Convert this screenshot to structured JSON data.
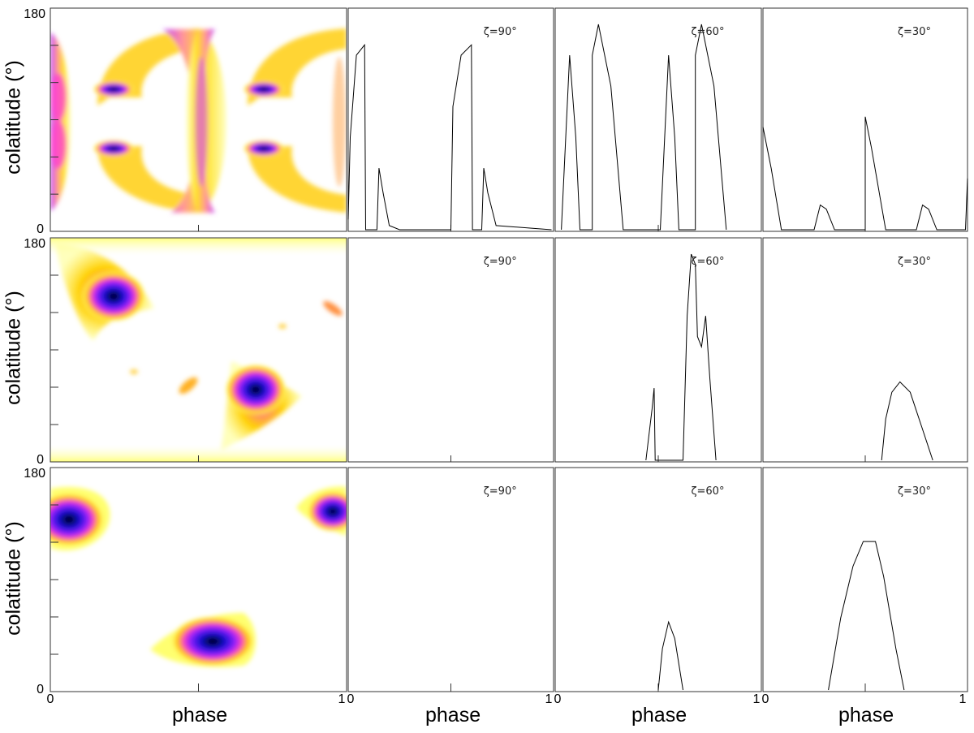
{
  "figure": {
    "y_axis_label": "colatitude (°)",
    "x_axis_label": "phase",
    "map_ticks": {
      "x": [
        "0",
        "1"
      ],
      "y_bottom": "0",
      "y_top": "180"
    },
    "profile_ticks": [
      "0",
      "1"
    ],
    "zeta_labels": [
      "ζ=90°",
      "ζ=60°",
      "ζ=30°"
    ],
    "colormap": [
      "#ffffff",
      "#ffff66",
      "#ffd000",
      "#ff8040",
      "#ff00ff",
      "#8000ff",
      "#2020ff",
      "#000000"
    ]
  },
  "chart_data": [
    {
      "type": "heatmap",
      "row": 1,
      "description_axes": "phase vs colatitude",
      "xlim": [
        0,
        1
      ],
      "ylim": [
        0,
        180
      ]
    },
    {
      "type": "line",
      "row": 1,
      "label": "ζ=90°",
      "xlim": [
        0,
        1
      ],
      "points": [
        [
          0.0,
          0.05
        ],
        [
          0.01,
          0.45
        ],
        [
          0.04,
          0.85
        ],
        [
          0.08,
          0.9
        ],
        [
          0.085,
          0.0
        ],
        [
          0.14,
          0.0
        ],
        [
          0.15,
          0.3
        ],
        [
          0.17,
          0.18
        ],
        [
          0.2,
          0.02
        ],
        [
          0.25,
          0.0
        ],
        [
          0.5,
          0.0
        ],
        [
          0.51,
          0.6
        ],
        [
          0.55,
          0.85
        ],
        [
          0.6,
          0.9
        ],
        [
          0.605,
          0.0
        ],
        [
          0.65,
          0.0
        ],
        [
          0.66,
          0.3
        ],
        [
          0.68,
          0.18
        ],
        [
          0.72,
          0.02
        ],
        [
          0.99,
          0.0
        ]
      ]
    },
    {
      "type": "line",
      "row": 1,
      "label": "ζ=60°",
      "xlim": [
        0,
        1
      ],
      "points": [
        [
          0.03,
          0.0
        ],
        [
          0.07,
          0.85
        ],
        [
          0.1,
          0.45
        ],
        [
          0.12,
          0.0
        ],
        [
          0.18,
          0.0
        ],
        [
          0.18,
          0.85
        ],
        [
          0.21,
          1.0
        ],
        [
          0.27,
          0.7
        ],
        [
          0.33,
          0.0
        ],
        [
          0.51,
          0.0
        ],
        [
          0.55,
          0.85
        ],
        [
          0.58,
          0.45
        ],
        [
          0.6,
          0.0
        ],
        [
          0.68,
          0.0
        ],
        [
          0.68,
          0.85
        ],
        [
          0.71,
          1.0
        ],
        [
          0.77,
          0.7
        ],
        [
          0.83,
          0.0
        ]
      ]
    },
    {
      "type": "line",
      "row": 1,
      "label": "ζ=30°",
      "xlim": [
        0,
        1
      ],
      "points": [
        [
          0.0,
          0.5
        ],
        [
          0.04,
          0.3
        ],
        [
          0.09,
          0.0
        ],
        [
          0.25,
          0.0
        ],
        [
          0.28,
          0.12
        ],
        [
          0.31,
          0.1
        ],
        [
          0.35,
          0.0
        ],
        [
          0.5,
          0.0
        ],
        [
          0.5,
          0.55
        ],
        [
          0.53,
          0.4
        ],
        [
          0.6,
          0.0
        ],
        [
          0.75,
          0.0
        ],
        [
          0.78,
          0.12
        ],
        [
          0.81,
          0.1
        ],
        [
          0.85,
          0.0
        ],
        [
          0.99,
          0.0
        ],
        [
          1.0,
          0.25
        ]
      ]
    },
    {
      "type": "heatmap",
      "row": 2,
      "description_axes": "phase vs colatitude",
      "xlim": [
        0,
        1
      ],
      "ylim": [
        0,
        180
      ]
    },
    {
      "type": "line",
      "row": 2,
      "label": "ζ=90°",
      "xlim": [
        0,
        1
      ],
      "points": []
    },
    {
      "type": "line",
      "row": 2,
      "label": "ζ=60°",
      "xlim": [
        0,
        1
      ],
      "points": [
        [
          0.44,
          0.0
        ],
        [
          0.47,
          0.25
        ],
        [
          0.48,
          0.35
        ],
        [
          0.485,
          0.0
        ],
        [
          0.62,
          0.0
        ],
        [
          0.64,
          0.7
        ],
        [
          0.66,
          1.0
        ],
        [
          0.68,
          0.95
        ],
        [
          0.69,
          0.6
        ],
        [
          0.71,
          0.55
        ],
        [
          0.73,
          0.7
        ],
        [
          0.75,
          0.4
        ],
        [
          0.78,
          0.0
        ]
      ]
    },
    {
      "type": "line",
      "row": 2,
      "label": "ζ=30°",
      "xlim": [
        0,
        1
      ],
      "points": [
        [
          0.58,
          0.0
        ],
        [
          0.6,
          0.2
        ],
        [
          0.63,
          0.33
        ],
        [
          0.67,
          0.38
        ],
        [
          0.72,
          0.33
        ],
        [
          0.78,
          0.15
        ],
        [
          0.83,
          0.0
        ]
      ]
    },
    {
      "type": "heatmap",
      "row": 3,
      "description_axes": "phase vs colatitude",
      "xlim": [
        0,
        1
      ],
      "ylim": [
        0,
        180
      ]
    },
    {
      "type": "line",
      "row": 3,
      "label": "ζ=90°",
      "xlim": [
        0,
        1
      ],
      "points": []
    },
    {
      "type": "line",
      "row": 3,
      "label": "ζ=60°",
      "xlim": [
        0,
        1
      ],
      "points": [
        [
          0.5,
          0.0
        ],
        [
          0.52,
          0.2
        ],
        [
          0.55,
          0.33
        ],
        [
          0.58,
          0.25
        ],
        [
          0.62,
          0.0
        ]
      ]
    },
    {
      "type": "line",
      "row": 3,
      "label": "ζ=30°",
      "xlim": [
        0,
        1
      ],
      "points": [
        [
          0.32,
          0.0
        ],
        [
          0.38,
          0.35
        ],
        [
          0.44,
          0.6
        ],
        [
          0.49,
          0.72
        ],
        [
          0.55,
          0.72
        ],
        [
          0.59,
          0.55
        ],
        [
          0.65,
          0.2
        ],
        [
          0.69,
          0.0
        ]
      ]
    }
  ]
}
